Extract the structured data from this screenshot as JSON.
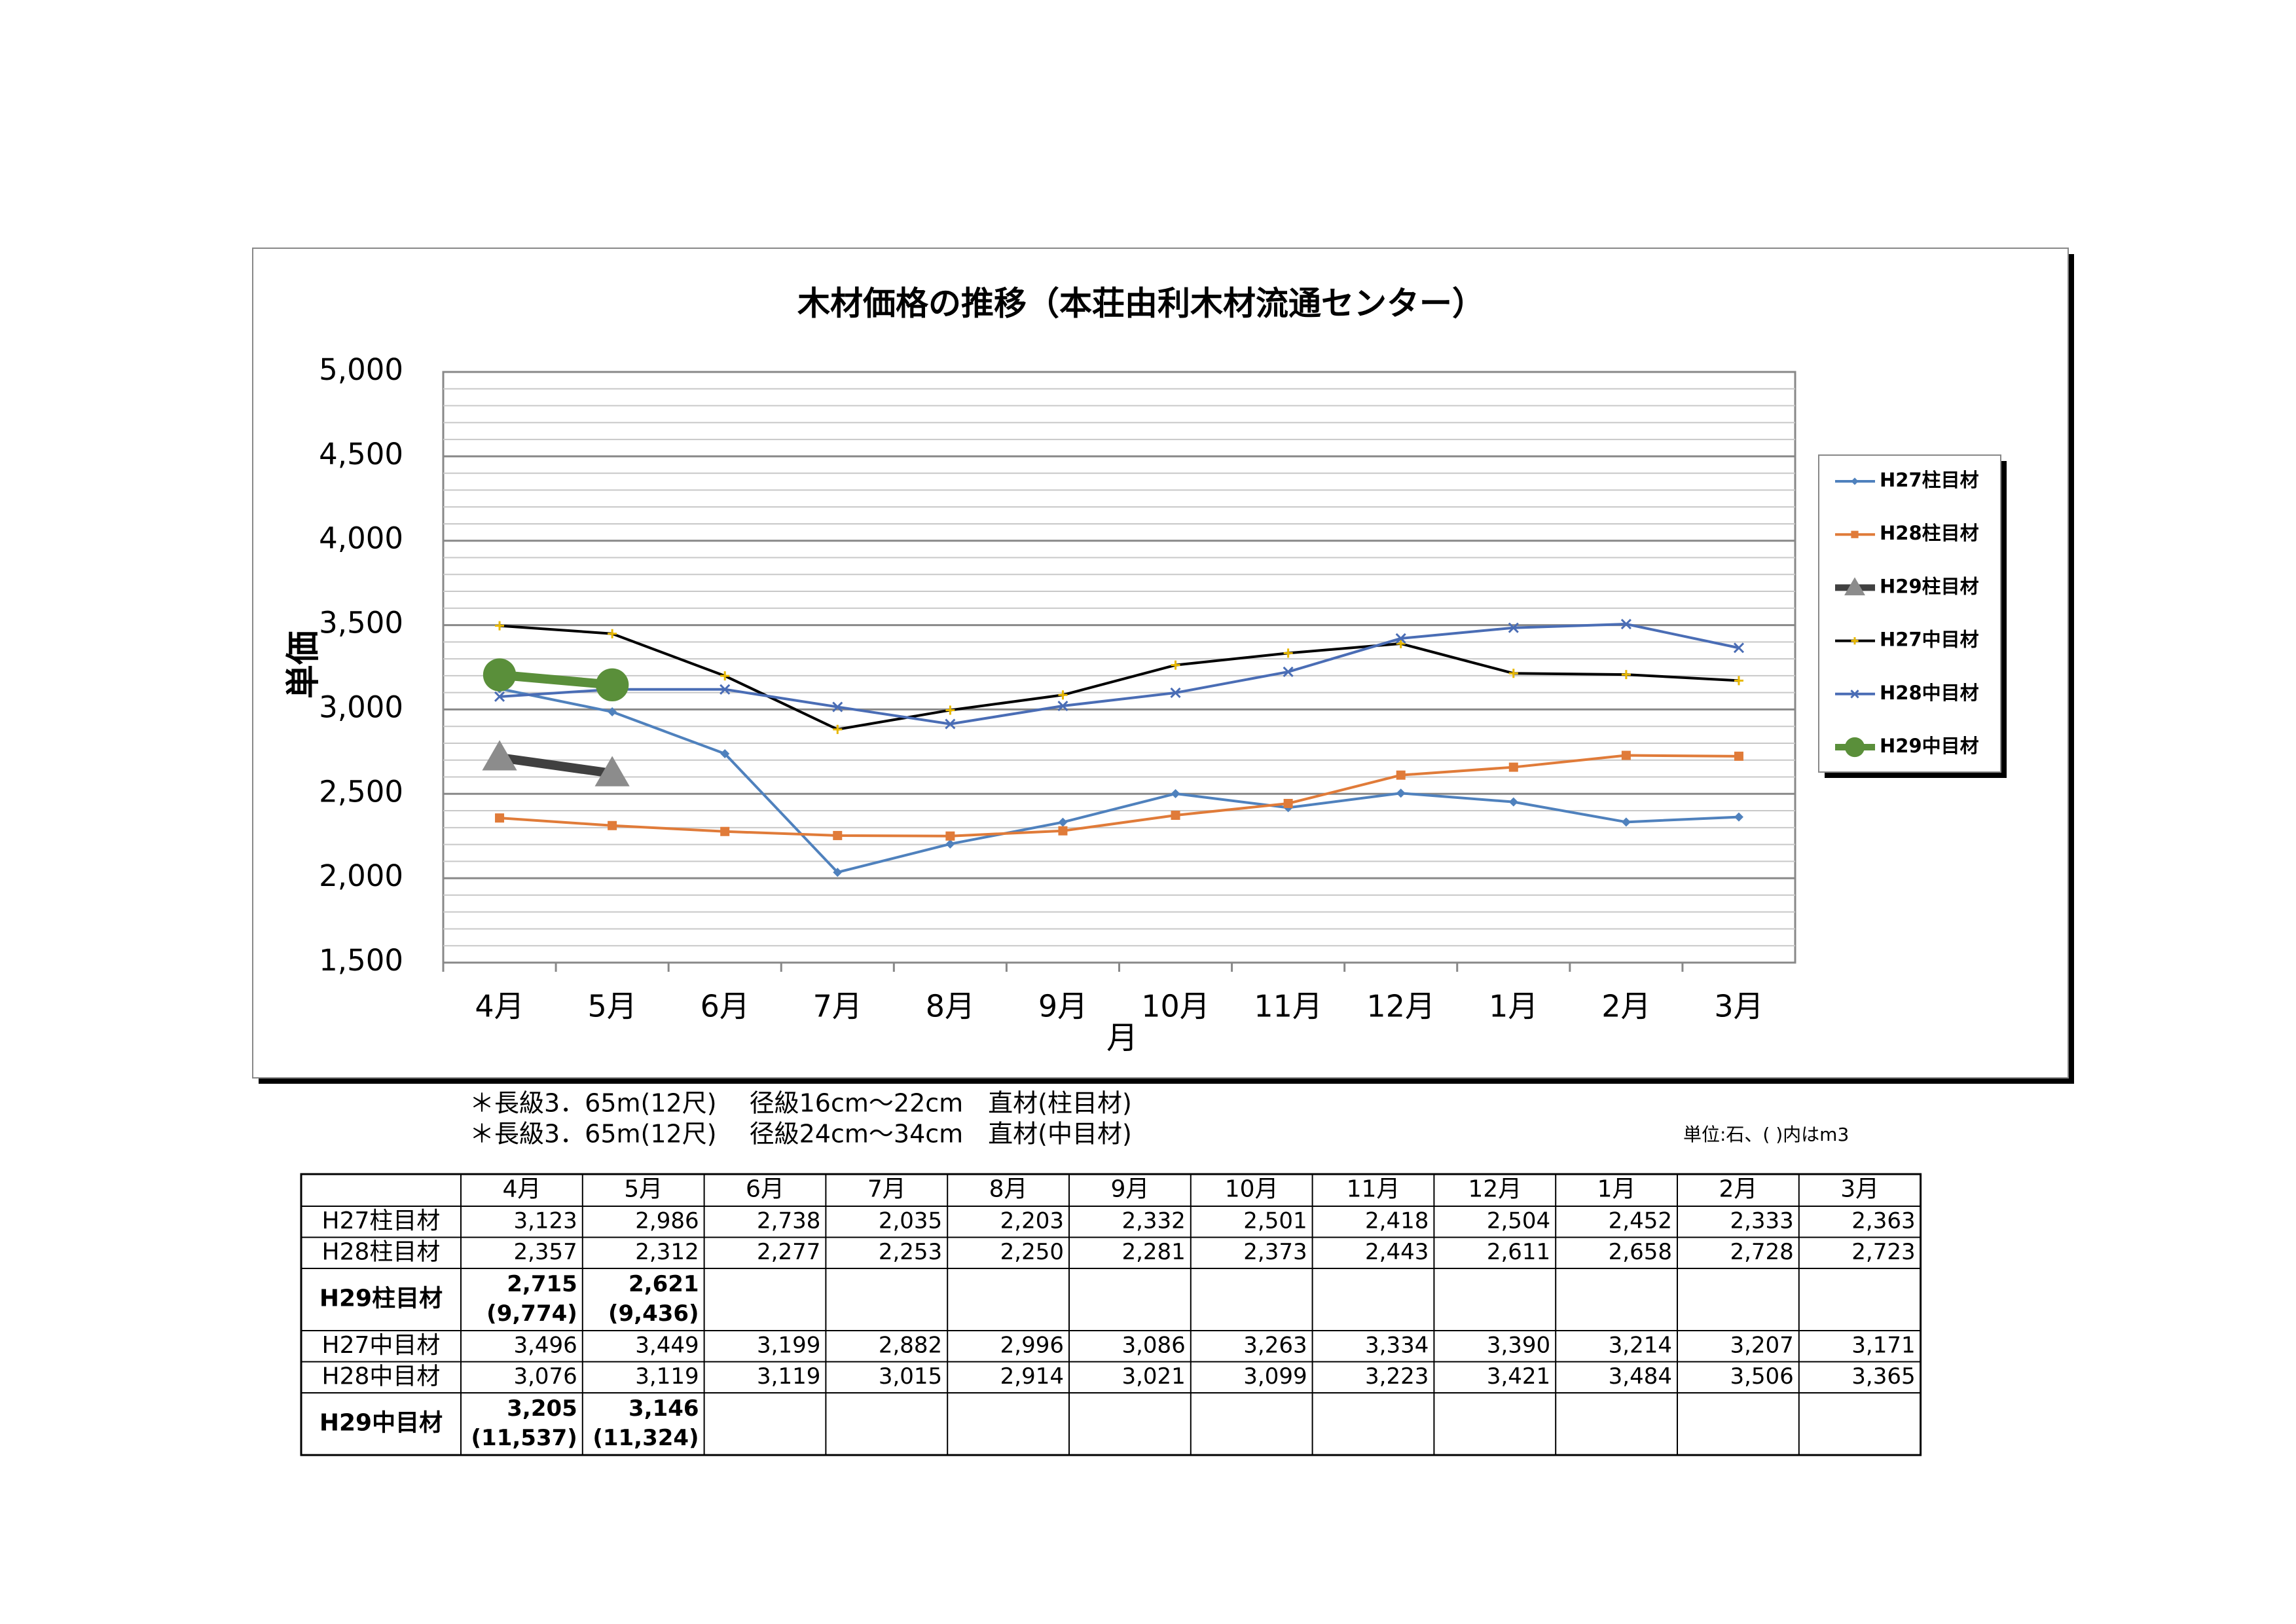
{
  "chart_data": {
    "type": "line",
    "title": "木材価格の推移（本荘由利木材流通センター）",
    "y_label": "単価",
    "x_label": "月",
    "categories": [
      "4月",
      "5月",
      "6月",
      "7月",
      "8月",
      "9月",
      "10月",
      "11月",
      "12月",
      "1月",
      "2月",
      "3月"
    ],
    "ylim": [
      1500,
      5000
    ],
    "yticks": [
      {
        "value": 1500,
        "label": "1,500"
      },
      {
        "value": 2000,
        "label": "2,000"
      },
      {
        "value": 2500,
        "label": "2,500"
      },
      {
        "value": 3000,
        "label": "3,000"
      },
      {
        "value": 3500,
        "label": "3,500"
      },
      {
        "value": 4000,
        "label": "4,000"
      },
      {
        "value": 4500,
        "label": "4,500"
      },
      {
        "value": 5000,
        "label": "5,000"
      }
    ],
    "grid": true,
    "legend": "right",
    "series": [
      {
        "name": "H27柱目材",
        "color": "#4f81bd",
        "values": [
          3123,
          2986,
          2738,
          2035,
          2203,
          2332,
          2501,
          2418,
          2504,
          2452,
          2333,
          2363
        ]
      },
      {
        "name": "H28柱目材",
        "color": "#e07b39",
        "values": [
          2357,
          2312,
          2277,
          2253,
          2250,
          2281,
          2373,
          2443,
          2611,
          2658,
          2728,
          2723
        ]
      },
      {
        "name": "H29柱目材",
        "color": "#404040",
        "values": [
          2715,
          2621,
          null,
          null,
          null,
          null,
          null,
          null,
          null,
          null,
          null,
          null
        ]
      },
      {
        "name": "H27中目材",
        "color": "#000000",
        "values": [
          3496,
          3449,
          3199,
          2882,
          2996,
          3086,
          3263,
          3334,
          3390,
          3214,
          3207,
          3171
        ]
      },
      {
        "name": "H28中目材",
        "color": "#4a6db5",
        "values": [
          3076,
          3119,
          3119,
          3015,
          2914,
          3021,
          3099,
          3223,
          3421,
          3484,
          3506,
          3365
        ]
      },
      {
        "name": "H29中目材",
        "color": "#5a8f3a",
        "values": [
          3205,
          3146,
          null,
          null,
          null,
          null,
          null,
          null,
          null,
          null,
          null,
          null
        ]
      }
    ]
  },
  "notes": [
    "＊長級3．65m(12尺)　 径級16cm～22cm　直材(柱目材)",
    "＊長級3．65m(12尺)　 径級24cm～34cm　直材(中目材)"
  ],
  "unit": "単位:石、( )内はm3",
  "table": {
    "columns": [
      "4月",
      "5月",
      "6月",
      "7月",
      "8月",
      "9月",
      "10月",
      "11月",
      "12月",
      "1月",
      "2月",
      "3月"
    ],
    "rows": [
      {
        "label": "H27柱目材",
        "cells": [
          "3,123",
          "2,986",
          "2,738",
          "2,035",
          "2,203",
          "2,332",
          "2,501",
          "2,418",
          "2,504",
          "2,452",
          "2,333",
          "2,363"
        ]
      },
      {
        "label": "H28柱目材",
        "cells": [
          "2,357",
          "2,312",
          "2,277",
          "2,253",
          "2,250",
          "2,281",
          "2,373",
          "2,443",
          "2,611",
          "2,658",
          "2,728",
          "2,723"
        ]
      },
      {
        "label": "H29柱目材",
        "cells": [
          "2,715",
          "2,621"
        ],
        "sub": [
          "(9,774)",
          "(9,436)"
        ]
      },
      {
        "label": "H27中目材",
        "cells": [
          "3,496",
          "3,449",
          "3,199",
          "2,882",
          "2,996",
          "3,086",
          "3,263",
          "3,334",
          "3,390",
          "3,214",
          "3,207",
          "3,171"
        ]
      },
      {
        "label": "H28中目材",
        "cells": [
          "3,076",
          "3,119",
          "3,119",
          "3,015",
          "2,914",
          "3,021",
          "3,099",
          "3,223",
          "3,421",
          "3,484",
          "3,506",
          "3,365"
        ]
      },
      {
        "label": "H29中目材",
        "cells": [
          "3,205",
          "3,146"
        ],
        "sub": [
          "(11,537)",
          "(11,324)"
        ]
      }
    ]
  }
}
